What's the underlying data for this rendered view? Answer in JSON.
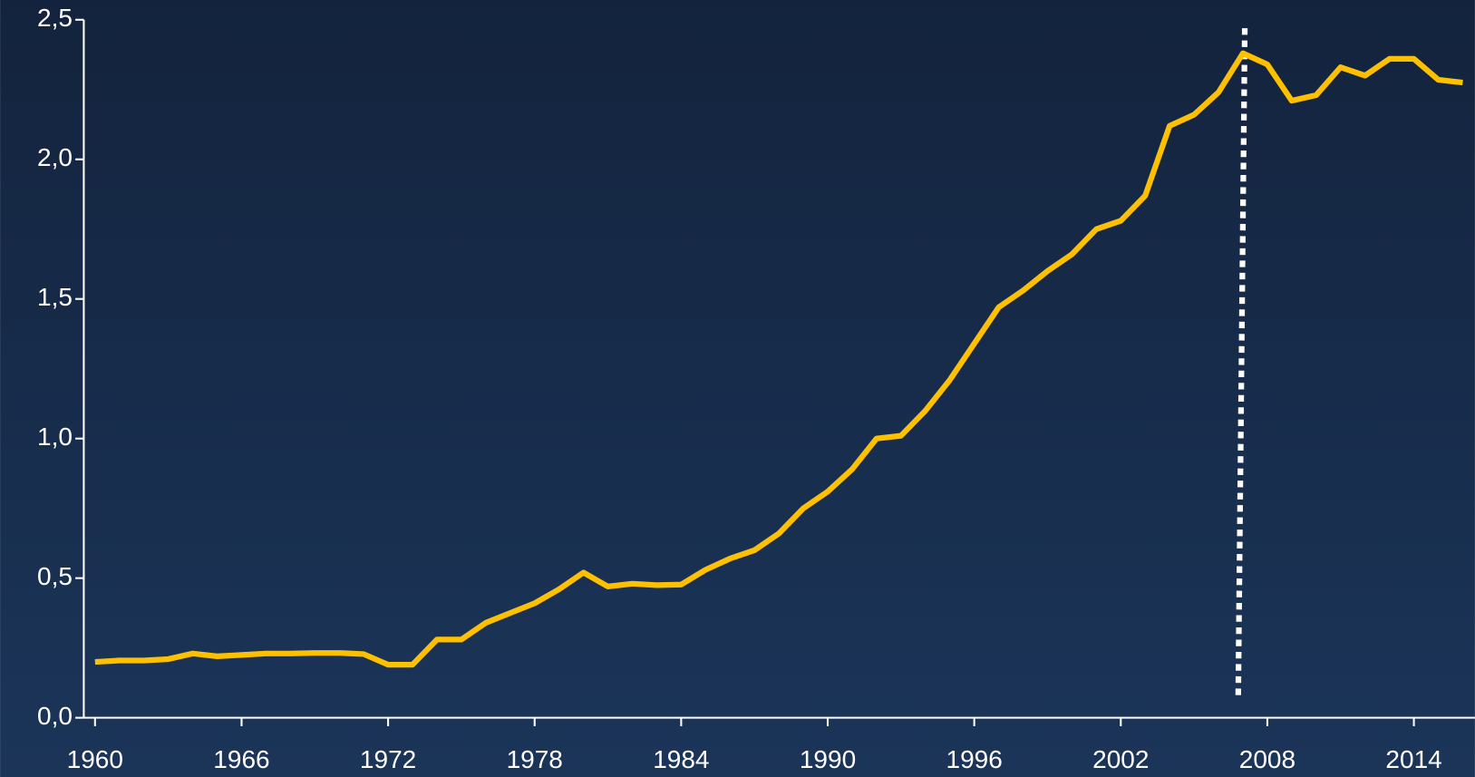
{
  "chart_data": {
    "type": "line",
    "x": [
      1960,
      1961,
      1962,
      1963,
      1964,
      1965,
      1966,
      1967,
      1968,
      1969,
      1970,
      1971,
      1972,
      1973,
      1974,
      1975,
      1976,
      1977,
      1978,
      1979,
      1980,
      1981,
      1982,
      1983,
      1984,
      1985,
      1986,
      1987,
      1988,
      1989,
      1990,
      1991,
      1992,
      1993,
      1994,
      1995,
      1996,
      1997,
      1998,
      1999,
      2000,
      2001,
      2002,
      2003,
      2004,
      2005,
      2006,
      2007,
      2008,
      2009,
      2010,
      2011,
      2012,
      2013,
      2014,
      2015,
      2016
    ],
    "series": [
      {
        "color": "#ffc000",
        "values": [
          0.2,
          0.205,
          0.205,
          0.21,
          0.23,
          0.22,
          0.225,
          0.23,
          0.23,
          0.232,
          0.232,
          0.228,
          0.19,
          0.19,
          0.28,
          0.28,
          0.34,
          0.375,
          0.41,
          0.46,
          0.52,
          0.47,
          0.48,
          0.475,
          0.477,
          0.53,
          0.57,
          0.6,
          0.66,
          0.75,
          0.81,
          0.89,
          1.0,
          1.01,
          1.1,
          1.21,
          1.34,
          1.47,
          1.53,
          1.6,
          1.66,
          1.75,
          1.78,
          1.87,
          2.12,
          2.16,
          2.24,
          2.38,
          2.34,
          2.21,
          2.23,
          2.33,
          2.3,
          2.36,
          2.36,
          2.285,
          2.275
        ]
      }
    ],
    "xlim": [
      1959.54,
      2016.5
    ],
    "xticks": [
      1960,
      1966,
      1972,
      1978,
      1984,
      1990,
      1996,
      2002,
      2008,
      2014
    ],
    "ylim": [
      0,
      2.5
    ],
    "yticks": [
      {
        "value": 0,
        "label": "0,0"
      },
      {
        "value": 0.5,
        "label": "0,5"
      },
      {
        "value": 1,
        "label": "1,0"
      },
      {
        "value": 1.5,
        "label": "1,5"
      },
      {
        "value": 2,
        "label": "2,0"
      },
      {
        "value": 2.5,
        "label": "2,5"
      }
    ],
    "vline": 2007,
    "vline_color": "#ffffff"
  }
}
